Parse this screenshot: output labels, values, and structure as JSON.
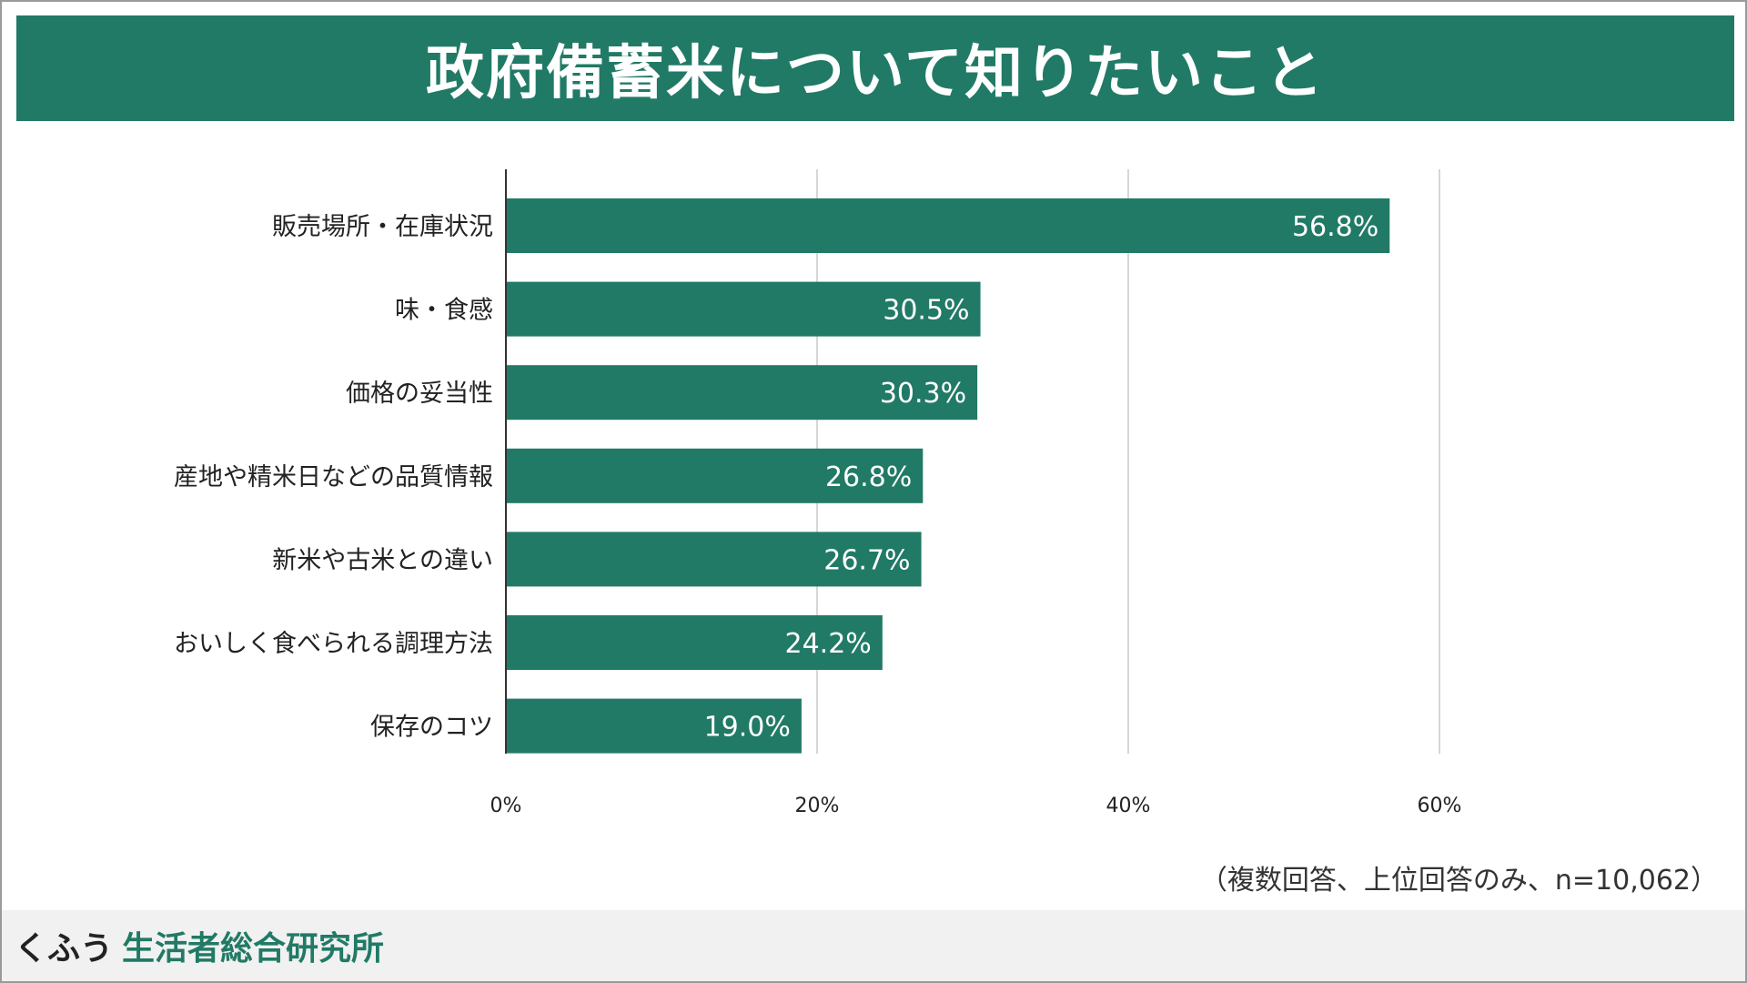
{
  "title": "政府備蓄米について知りたいこと",
  "footnote": "（複数回答、上位回答のみ、n=10,062）",
  "footer": {
    "logo_prefix": "くふう",
    "logo_name": "生活者総合研究所"
  },
  "colors": {
    "accent": "#217a66",
    "bar_label": "#ffffff",
    "grid": "#d6d6d6",
    "axis": "#333333",
    "text": "#222222"
  },
  "chart_data": {
    "type": "bar",
    "orientation": "horizontal",
    "title": "政府備蓄米について知りたいこと",
    "categories": [
      "販売場所・在庫状況",
      "味・食感",
      "価格の妥当性",
      "産地や精米日などの品質情報",
      "新米や古米との違い",
      "おいしく食べられる調理方法",
      "保存のコツ"
    ],
    "values": [
      56.8,
      30.5,
      30.3,
      26.8,
      26.7,
      24.2,
      19.0
    ],
    "value_labels": [
      "56.8%",
      "30.5%",
      "30.3%",
      "26.8%",
      "26.7%",
      "24.2%",
      "19.0%"
    ],
    "xlim": [
      0,
      60
    ],
    "x_ticks": [
      0,
      20,
      40,
      60
    ],
    "x_tick_labels": [
      "0%",
      "20%",
      "40%",
      "60%"
    ],
    "grid": true,
    "legend": "none"
  }
}
